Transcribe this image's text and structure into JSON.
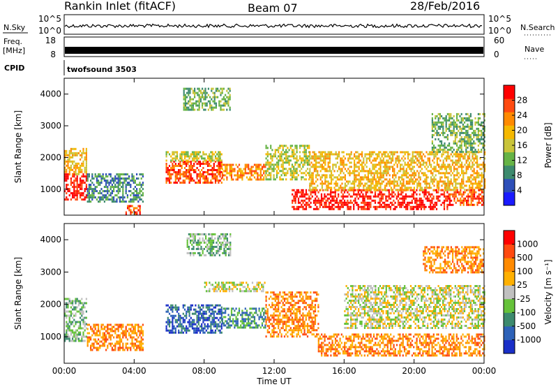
{
  "header": {
    "station": "Rankin Inlet (fitACF)",
    "beam": "Beam 07",
    "date": "28/Feb/2016"
  },
  "strips": {
    "nsky_label": "N.Sky",
    "nsky_ticks": [
      "10^5",
      "10^0"
    ],
    "nsearch_label": "N.Search",
    "nsearch_ticks": [
      "10^5",
      "10^0"
    ],
    "freq_label": "Freq.",
    "freq_unit": "[MHz]",
    "freq_ticks": [
      "18",
      "8"
    ],
    "nave_label": "Nave",
    "nave_ticks": [
      "60",
      "0"
    ],
    "cpid_label": "CPID",
    "cpid_value": "twofsound 3503"
  },
  "chart_data": [
    {
      "type": "heatmap",
      "name_panel": "power",
      "ylabel": "Slant Range [km]",
      "ylim": [
        180,
        4500
      ],
      "yticks": [
        1000,
        2000,
        3000,
        4000
      ],
      "xlim_hours": [
        0,
        24
      ],
      "xticks": [
        "00:00",
        "04:00",
        "08:00",
        "12:00",
        "16:00",
        "20:00",
        "00:00"
      ],
      "colorbar": {
        "label": "Power [dB]",
        "ticks": [
          "28",
          "24",
          "20",
          "16",
          "12",
          "8",
          "4"
        ],
        "colors": [
          "#1a1aff",
          "#2e4fb8",
          "#3d8a6e",
          "#66b346",
          "#c9c43a",
          "#f5b800",
          "#ff8a00",
          "#ff4a10",
          "#ff0000"
        ]
      },
      "regions": [
        {
          "t0": 0.0,
          "t1": 1.3,
          "r0": 700,
          "r1": 1500,
          "level": 8
        },
        {
          "t0": 0.0,
          "t1": 1.3,
          "r0": 1500,
          "r1": 2300,
          "level": 5
        },
        {
          "t0": 1.3,
          "t1": 4.5,
          "r0": 600,
          "r1": 1500,
          "level": 2
        },
        {
          "t0": 3.5,
          "t1": 4.3,
          "r0": 200,
          "r1": 500,
          "level": 7
        },
        {
          "t0": 5.8,
          "t1": 9.0,
          "r0": 1200,
          "r1": 1900,
          "level": 7
        },
        {
          "t0": 5.8,
          "t1": 9.0,
          "r0": 1900,
          "r1": 2200,
          "level": 4
        },
        {
          "t0": 6.8,
          "t1": 9.5,
          "r0": 3500,
          "r1": 4200,
          "level": 3
        },
        {
          "t0": 9.0,
          "t1": 11.5,
          "r0": 1300,
          "r1": 1800,
          "level": 6
        },
        {
          "t0": 11.5,
          "t1": 14.0,
          "r0": 1300,
          "r1": 2400,
          "level": 4
        },
        {
          "t0": 13.0,
          "t1": 22.0,
          "r0": 400,
          "r1": 1000,
          "level": 8
        },
        {
          "t0": 14.0,
          "t1": 24.0,
          "r0": 1000,
          "r1": 2200,
          "level": 5
        },
        {
          "t0": 22.0,
          "t1": 24.0,
          "r0": 500,
          "r1": 1000,
          "level": 7
        },
        {
          "t0": 21.0,
          "t1": 24.0,
          "r0": 2200,
          "r1": 3400,
          "level": 3
        }
      ]
    },
    {
      "type": "heatmap",
      "name_panel": "velocity",
      "ylabel": "Slant Range [km]",
      "xlabel": "Time UT",
      "ylim": [
        180,
        4500
      ],
      "yticks": [
        1000,
        2000,
        3000,
        4000
      ],
      "xlim_hours": [
        0,
        24
      ],
      "xticks": [
        "00:00",
        "04:00",
        "08:00",
        "12:00",
        "16:00",
        "20:00",
        "00:00"
      ],
      "colorbar": {
        "label": "Velocity [m s⁻¹]",
        "ticks": [
          "1000",
          "500",
          "100",
          "25",
          "-25",
          "-100",
          "-500",
          "-1000"
        ],
        "colors": [
          "#1a2fc8",
          "#2e62b8",
          "#3d8a6e",
          "#66c23a",
          "#c0c0c0",
          "#ffb000",
          "#ff8a00",
          "#ff4a10",
          "#ff0000"
        ]
      },
      "regions": [
        {
          "t0": 0.0,
          "t1": 1.3,
          "r0": 900,
          "r1": 2200,
          "level": 3
        },
        {
          "t0": 1.3,
          "t1": 4.5,
          "r0": 600,
          "r1": 1400,
          "level": 6
        },
        {
          "t0": 5.8,
          "t1": 9.0,
          "r0": 1100,
          "r1": 2000,
          "level": 1
        },
        {
          "t0": 7.0,
          "t1": 9.5,
          "r0": 3500,
          "r1": 4200,
          "level": 3
        },
        {
          "t0": 8.0,
          "t1": 11.5,
          "r0": 2400,
          "r1": 2700,
          "level": 4
        },
        {
          "t0": 9.0,
          "t1": 11.5,
          "r0": 1300,
          "r1": 1900,
          "level": 2
        },
        {
          "t0": 11.5,
          "t1": 14.5,
          "r0": 1000,
          "r1": 2400,
          "level": 6
        },
        {
          "t0": 14.5,
          "t1": 24.0,
          "r0": 400,
          "r1": 1100,
          "level": 6
        },
        {
          "t0": 16.0,
          "t1": 24.0,
          "r0": 1300,
          "r1": 2600,
          "level": 4
        },
        {
          "t0": 20.5,
          "t1": 24.0,
          "r0": 3000,
          "r1": 3800,
          "level": 6
        }
      ]
    }
  ]
}
